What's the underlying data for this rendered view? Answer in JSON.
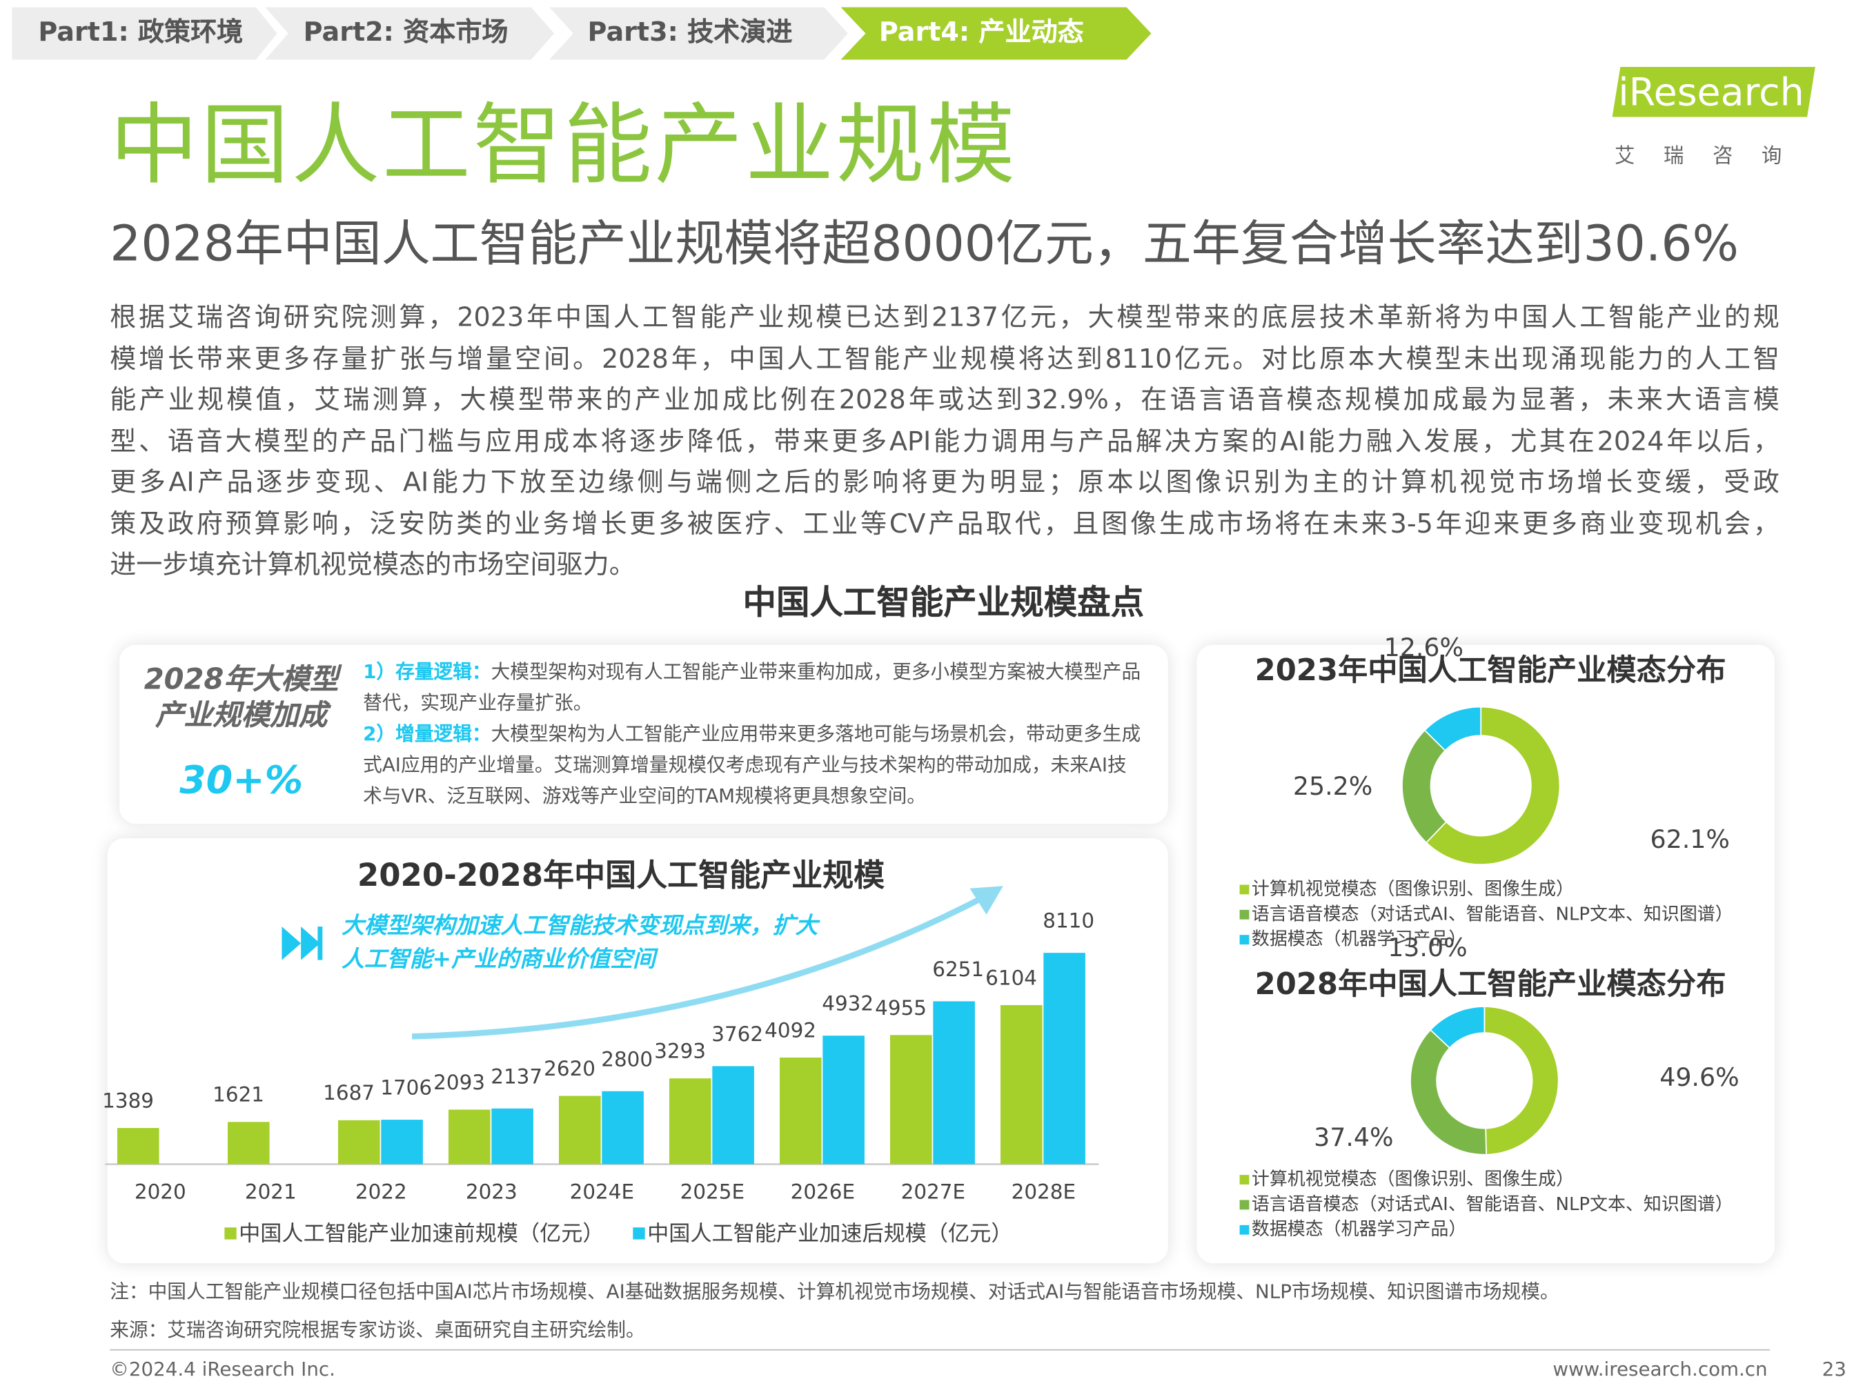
{
  "nav": [
    "Part1: 政策环境",
    "Part2: 资本市场",
    "Part3: 技术演进",
    "Part4: 产业动态"
  ],
  "header": {
    "title": "中国人工智能产业规模",
    "logo": "iResearch",
    "logo_sub": "艾瑞咨询",
    "subtitle": "2028年中国人工智能产业规模将超8000亿元，五年复合增长率达到30.6%"
  },
  "body": {
    "lines": [
      "根据艾瑞咨询研究院测算，2023年中国人工智能产业规模已达到2137亿元，大模型带来的底层技术革新将为中国人工智能产业的规",
      "模增长带来更多存量扩张与增量空间。2028年，中国人工智能产业规模将达到8110亿元。对比原本大模型未出现涌现能力的人工智",
      "能产业规模值，艾瑞测算，大模型带来的产业加成比例在2028年或达到32.9%，在语言语音模态规模加成最为显著，未来大语言模",
      "型、语音大模型的产品门槛与应用成本将逐步降低，带来更多API能力调用与产品解决方案的AI能力融入发展，尤其在2024年以后，",
      "更多AI产品逐步变现、AI能力下放至边缘侧与端侧之后的影响将更为明显；原本以图像识别为主的计算机视觉市场增长变缓，受政",
      "策及政府预算影响，泛安防类的业务增长更多被医疗、工业等CV产品取代，且图像生成市场将在未来3-5年迎来更多商业变现机会，",
      "进一步填充计算机视觉模态的市场空间驱力。"
    ]
  },
  "section": {
    "heading": "中国人工智能产业规模盘点"
  },
  "boost": {
    "label": [
      "2028年大模型",
      "产业规模加成"
    ],
    "value": "30+%",
    "points": [
      {
        "head": "1）存量逻辑：",
        "text": "大模型架构对现有人工智能产业带来重构加成，更多小模型方案被大模型产品替代，实现产业存量扩张。"
      },
      {
        "head": "2）增量逻辑：",
        "text": "大模型架构为人工智能产业应用带来更多落地可能与场景机会，带动更多生成式AI应用的产业增量。艾瑞测算增量规模仅考虑现有产业与技术架构的带动加成，未来AI技术与VR、泛互联网、游戏等产业空间的TAM规模将更具想象空间。"
      }
    ]
  },
  "chart_data": [
    {
      "type": "bar",
      "title": "2020-2028年中国人工智能产业规模",
      "annotation": [
        "大模型架构加速人工智能技术变现点到来，扩大",
        "人工智能+产业的商业价值空间"
      ],
      "categories": [
        "2020",
        "2021",
        "2022",
        "2023",
        "2024E",
        "2025E",
        "2026E",
        "2027E",
        "2028E"
      ],
      "series": [
        {
          "name": "中国人工智能产业加速前规模（亿元）",
          "color": "#a5cf2a",
          "values": [
            1389,
            1621,
            1687,
            2093,
            2620,
            3293,
            4092,
            4955,
            6104
          ]
        },
        {
          "name": "中国人工智能产业加速后规模（亿元）",
          "color": "#1ec8f0",
          "values": [
            null,
            null,
            1706,
            2137,
            2800,
            3762,
            4932,
            6251,
            8110
          ]
        }
      ]
    },
    {
      "type": "pie",
      "title": "2023年中国人工智能产业模态分布",
      "categories": [
        "计算机视觉模态（图像识别、图像生成）",
        "语言语音模态（对话式AI、智能语音、NLP文本、知识图谱）",
        "数据模态（机器学习产品）"
      ],
      "colors": [
        "#a5cf2a",
        "#7ab648",
        "#1ec8f0"
      ],
      "values": [
        62.1,
        25.2,
        12.6
      ],
      "value_labels": [
        "62.1%",
        "25.2%",
        "12.6%"
      ]
    },
    {
      "type": "pie",
      "title": "2028年中国人工智能产业模态分布",
      "categories": [
        "计算机视觉模态（图像识别、图像生成）",
        "语言语音模态（对话式AI、智能语音、NLP文本、知识图谱）",
        "数据模态（机器学习产品）"
      ],
      "colors": [
        "#a5cf2a",
        "#7ab648",
        "#1ec8f0"
      ],
      "values": [
        49.6,
        37.4,
        13.0
      ],
      "value_labels": [
        "49.6%",
        "37.4%",
        "13.0%"
      ]
    }
  ],
  "footer": {
    "note": "注：中国人工智能产业规模口径包括中国AI芯片市场规模、AI基础数据服务规模、计算机视觉市场规模、对话式AI与智能语音市场规模、NLP市场规模、知识图谱市场规模。",
    "source": "来源：艾瑞咨询研究院根据专家访谈、桌面研究自主研究绘制。",
    "copyright": "©2024.4 iResearch Inc.",
    "website": "www.iresearch.com.cn",
    "page": "23"
  }
}
